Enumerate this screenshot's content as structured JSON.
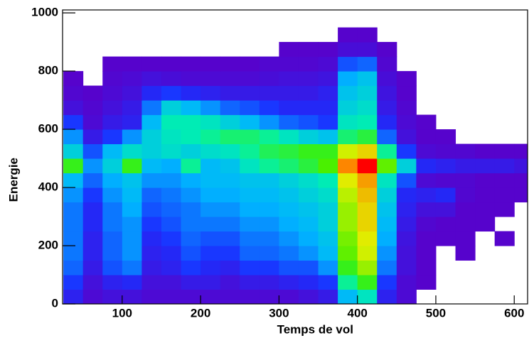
{
  "chart_data": {
    "type": "heatmap",
    "xlabel": "Temps de vol",
    "ylabel": "Energie",
    "xlim": [
      24,
      617
    ],
    "ylim": [
      0,
      1010
    ],
    "xticks": [
      100,
      200,
      300,
      400,
      500,
      600
    ],
    "yticks": [
      0,
      200,
      400,
      600,
      800,
      1000
    ],
    "x_bins": [
      25,
      50,
      75,
      100,
      125,
      150,
      175,
      200,
      225,
      250,
      275,
      300,
      325,
      350,
      375,
      400,
      425,
      450,
      475,
      500,
      525,
      550,
      575,
      600,
      625
    ],
    "y_bins": [
      0,
      50,
      100,
      150,
      200,
      250,
      300,
      350,
      400,
      450,
      500,
      550,
      600,
      650,
      700,
      750,
      800,
      850,
      900,
      950,
      1000
    ],
    "palette": [
      "#5a00c8",
      "#1a30ff",
      "#00b4ff",
      "#00f0b0",
      "#40f000",
      "#e0f000",
      "#ff8000",
      "#ff0000"
    ],
    "z": [
      [
        10,
        3,
        5,
        5,
        3,
        3,
        3,
        3,
        3,
        3,
        3,
        3,
        5,
        8,
        30,
        40,
        10,
        3,
        0,
        0,
        0,
        0,
        0,
        0
      ],
      [
        15,
        5,
        10,
        12,
        5,
        5,
        8,
        8,
        5,
        8,
        8,
        10,
        12,
        15,
        45,
        55,
        15,
        3,
        1,
        0,
        0,
        0,
        0,
        0
      ],
      [
        20,
        8,
        18,
        22,
        8,
        10,
        15,
        12,
        10,
        15,
        15,
        18,
        18,
        25,
        55,
        65,
        22,
        5,
        1,
        0,
        0,
        0,
        0,
        0
      ],
      [
        22,
        10,
        20,
        25,
        10,
        12,
        18,
        15,
        15,
        20,
        20,
        22,
        25,
        30,
        60,
        70,
        25,
        5,
        1,
        0,
        1,
        0,
        0,
        0
      ],
      [
        22,
        10,
        20,
        25,
        12,
        15,
        20,
        18,
        18,
        22,
        22,
        25,
        28,
        32,
        62,
        72,
        28,
        6,
        1,
        1,
        1,
        0,
        1,
        0
      ],
      [
        22,
        12,
        22,
        25,
        15,
        18,
        22,
        22,
        22,
        25,
        25,
        28,
        30,
        35,
        65,
        75,
        30,
        8,
        2,
        1,
        1,
        1,
        0,
        0
      ],
      [
        22,
        12,
        22,
        28,
        18,
        20,
        22,
        25,
        25,
        28,
        28,
        30,
        32,
        35,
        65,
        75,
        32,
        10,
        5,
        5,
        1,
        1,
        1,
        0
      ],
      [
        25,
        15,
        25,
        30,
        20,
        22,
        25,
        28,
        28,
        30,
        30,
        32,
        35,
        38,
        68,
        78,
        35,
        12,
        10,
        12,
        2,
        1,
        1,
        1
      ],
      [
        30,
        20,
        28,
        32,
        25,
        25,
        28,
        30,
        30,
        32,
        32,
        35,
        38,
        42,
        72,
        82,
        40,
        18,
        3,
        2,
        2,
        1,
        1,
        1
      ],
      [
        55,
        25,
        35,
        55,
        30,
        28,
        45,
        30,
        32,
        40,
        45,
        48,
        52,
        58,
        85,
        100,
        60,
        35,
        12,
        10,
        8,
        8,
        8,
        6
      ],
      [
        35,
        18,
        30,
        38,
        35,
        38,
        35,
        38,
        40,
        45,
        50,
        52,
        55,
        55,
        70,
        75,
        45,
        15,
        3,
        2,
        2,
        1,
        1,
        1
      ],
      [
        25,
        8,
        15,
        25,
        35,
        40,
        42,
        45,
        48,
        48,
        45,
        40,
        35,
        32,
        48,
        52,
        20,
        5,
        1,
        1,
        0,
        0,
        0,
        0
      ],
      [
        15,
        3,
        8,
        10,
        30,
        42,
        42,
        40,
        35,
        30,
        25,
        20,
        18,
        15,
        40,
        42,
        12,
        3,
        1,
        0,
        0,
        0,
        0,
        0
      ],
      [
        5,
        2,
        5,
        8,
        22,
        35,
        30,
        25,
        20,
        18,
        15,
        12,
        12,
        12,
        35,
        38,
        8,
        2,
        0,
        0,
        0,
        0,
        0,
        0
      ],
      [
        2,
        1,
        3,
        5,
        12,
        15,
        12,
        10,
        8,
        8,
        8,
        8,
        8,
        10,
        32,
        35,
        6,
        1,
        0,
        0,
        0,
        0,
        0,
        0
      ],
      [
        1,
        0,
        2,
        3,
        5,
        4,
        3,
        3,
        3,
        3,
        4,
        5,
        5,
        6,
        28,
        32,
        4,
        1,
        0,
        0,
        0,
        0,
        0,
        0
      ],
      [
        0,
        0,
        1,
        1,
        1,
        1,
        1,
        1,
        1,
        1,
        2,
        2,
        2,
        3,
        18,
        20,
        2,
        0,
        0,
        0,
        0,
        0,
        0,
        0
      ],
      [
        0,
        0,
        0,
        0,
        0,
        0,
        0,
        0,
        0,
        0,
        0,
        1,
        1,
        1,
        4,
        4,
        1,
        0,
        0,
        0,
        0,
        0,
        0,
        0
      ],
      [
        0,
        0,
        0,
        0,
        0,
        0,
        0,
        0,
        0,
        0,
        0,
        0,
        0,
        0,
        1,
        1,
        0,
        0,
        0,
        0,
        0,
        0,
        0,
        0
      ],
      [
        0,
        0,
        0,
        0,
        0,
        0,
        0,
        0,
        0,
        0,
        0,
        0,
        0,
        0,
        0,
        0,
        0,
        0,
        0,
        0,
        0,
        0,
        0,
        0
      ]
    ]
  }
}
